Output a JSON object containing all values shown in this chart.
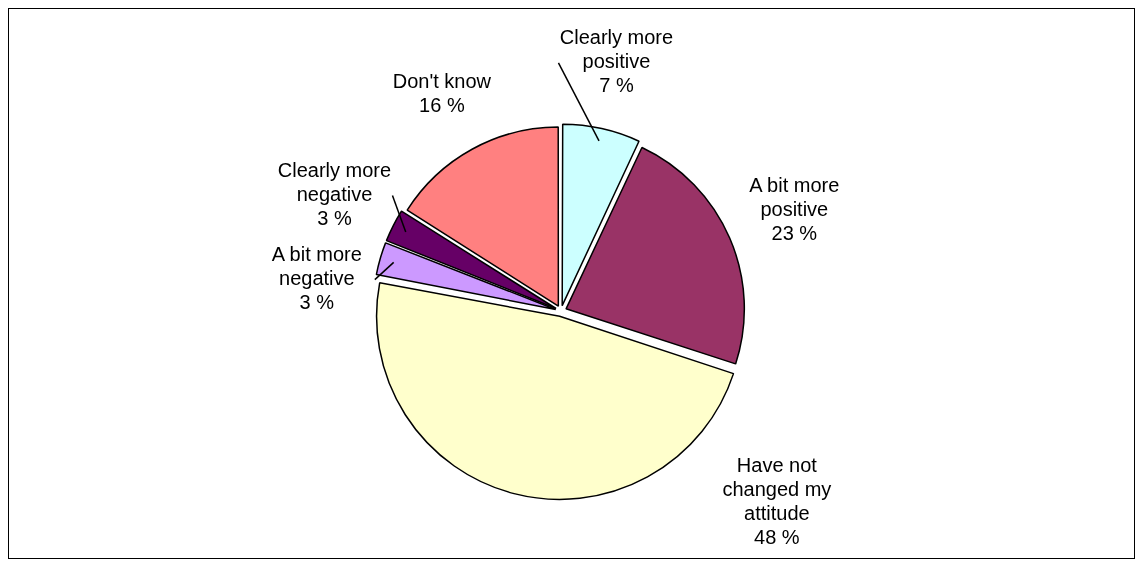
{
  "chart_data": {
    "type": "pie",
    "categories": [
      "Clearly more positive",
      "A bit more positive",
      "Have not changed my attitude",
      "A bit more negative",
      "Clearly more negative",
      "Don't know"
    ],
    "values": [
      7,
      23,
      48,
      3,
      3,
      16
    ],
    "value_labels": [
      "7 %",
      "23 %",
      "48 %",
      "3 %",
      "3 %",
      "16 %"
    ],
    "colors": [
      "#ccffff",
      "#993366",
      "#ffffcc",
      "#cc99ff",
      "#660066",
      "#ff8080"
    ],
    "legend": false
  }
}
